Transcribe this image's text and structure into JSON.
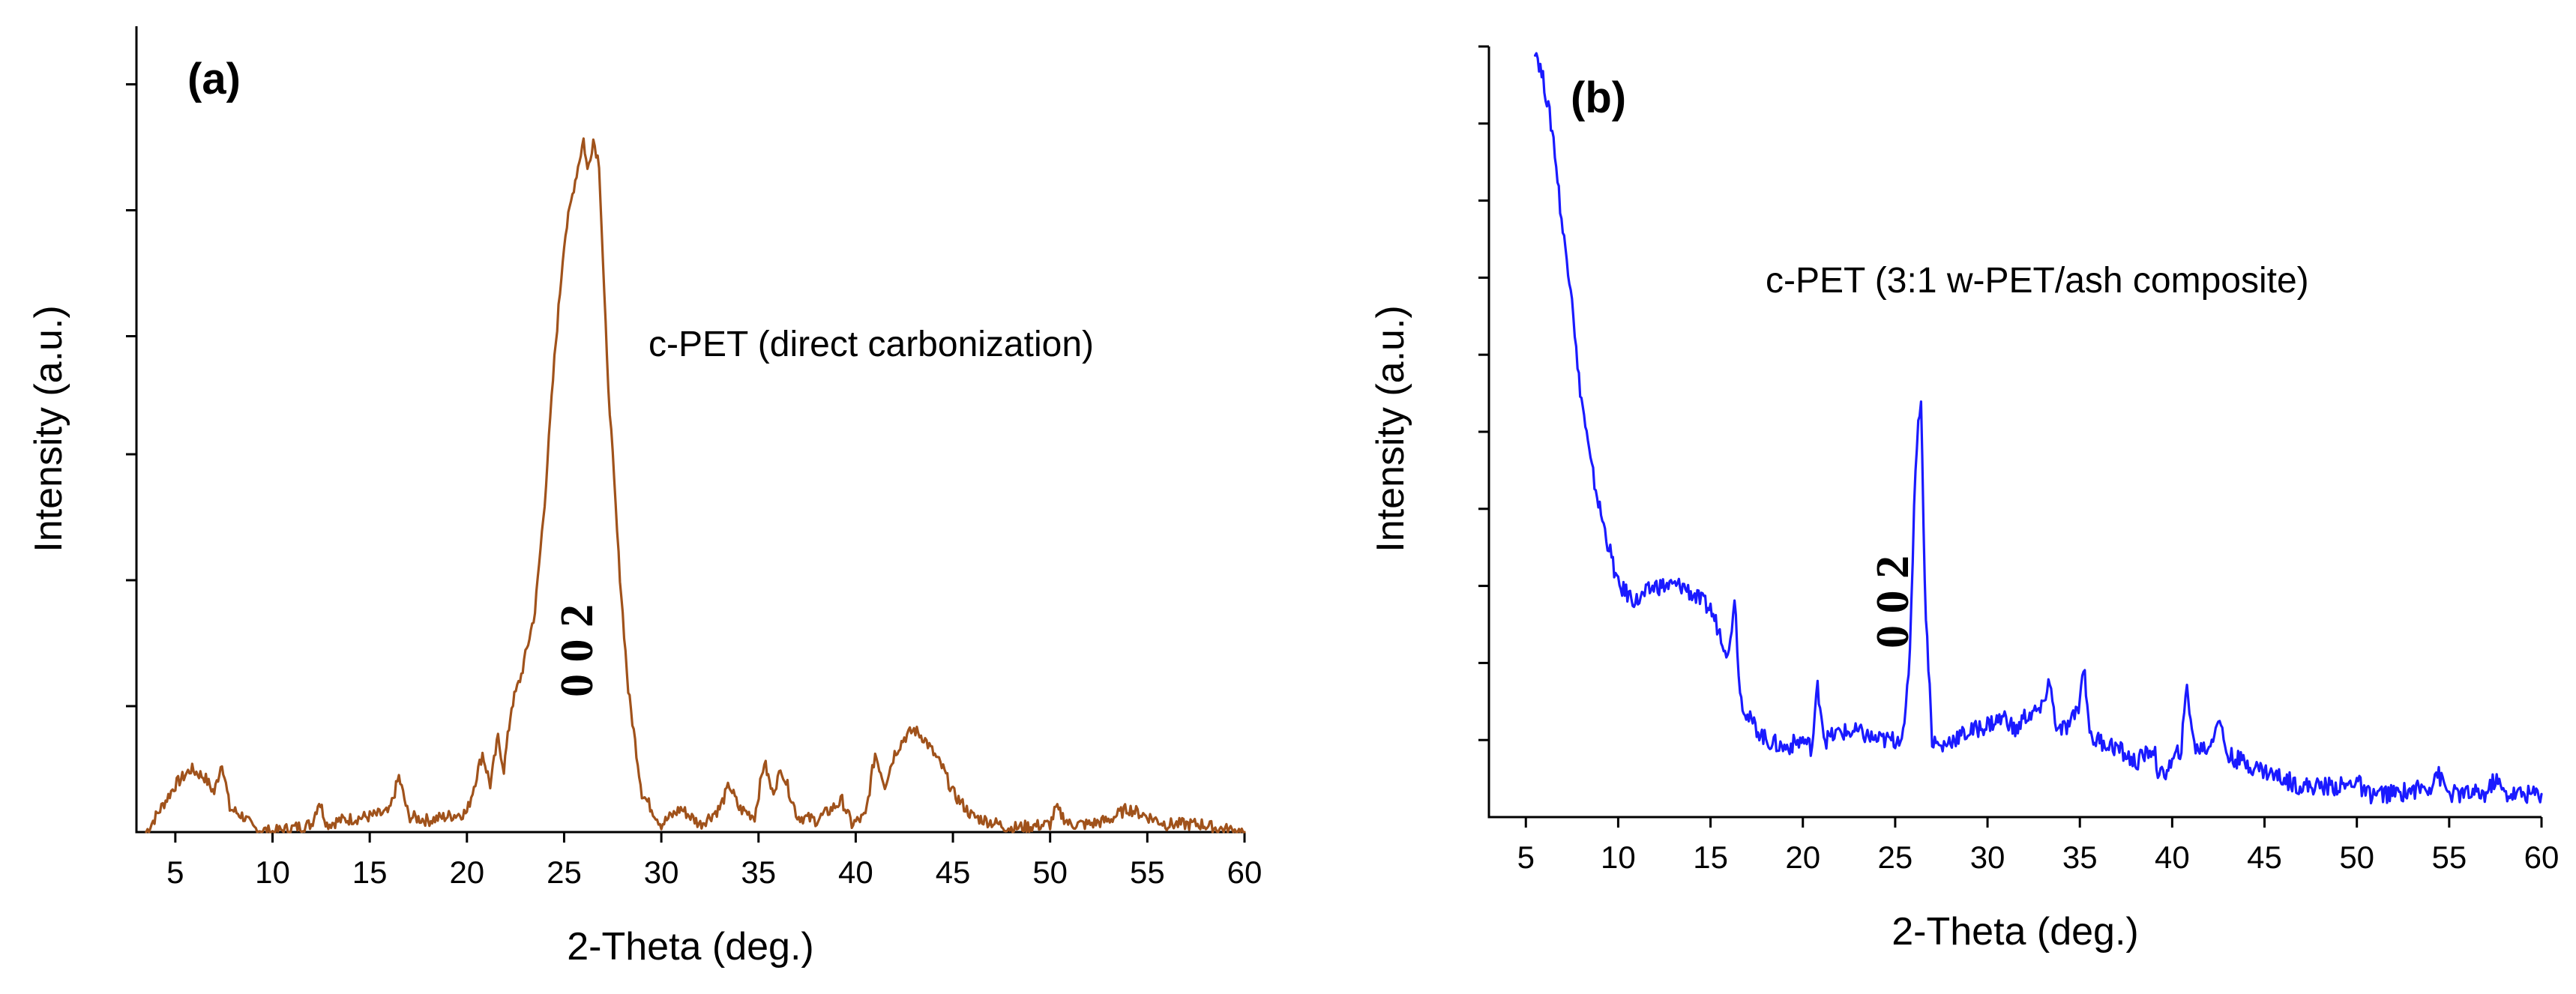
{
  "chart_data": [
    {
      "type": "line",
      "panel_label": "(a)",
      "annotation": "c-PET (direct carbonization)",
      "peak_label": "0 0 2",
      "xlabel": "2-Theta (deg.)",
      "ylabel": "Intensity (a.u.)",
      "xlim": [
        3,
        60
      ],
      "ylim": [
        0,
        100
      ],
      "xticks": [
        5,
        10,
        15,
        20,
        25,
        30,
        35,
        40,
        45,
        50,
        55,
        60
      ],
      "yticks_unlabeled": [
        16,
        32,
        48,
        63,
        79,
        95
      ],
      "color": "#a0521b",
      "series": [
        {
          "name": "c-PET (direct carbonization)",
          "x": [
            3.5,
            4.0,
            5.0,
            5.8,
            6.5,
            7.0,
            7.4,
            7.8,
            8.5,
            9.0,
            10.0,
            11.0,
            12.0,
            12.4,
            12.8,
            13.5,
            15.0,
            16.0,
            16.5,
            17.0,
            18.0,
            20.0,
            20.8,
            21.2,
            21.6,
            21.9,
            22.3,
            22.8,
            23.5,
            24.0,
            24.5,
            25.0,
            25.5,
            26.0,
            26.2,
            26.5,
            26.8,
            27.2,
            27.8,
            28.3,
            29.0,
            30.0,
            31.0,
            32.0,
            33.0,
            33.5,
            34.0,
            34.8,
            35.3,
            35.7,
            36.2,
            37.0,
            38.0,
            39.3,
            39.8,
            40.5,
            41.0,
            41.5,
            42.0,
            42.5,
            43.0,
            43.5,
            44.0,
            44.5,
            45.0,
            46.0,
            48.0,
            50.0,
            50.3,
            51.0,
            52.0,
            53.0,
            54.0,
            55.0,
            56.0,
            57.8,
            58.5,
            60.0
          ],
          "y": [
            0,
            2,
            6,
            8,
            7,
            5,
            9,
            3,
            2,
            0.5,
            0,
            0.5,
            1,
            4,
            1,
            1.5,
            2,
            2.5,
            7,
            2,
            1.5,
            2.5,
            10,
            6,
            12,
            8,
            16,
            20,
            28,
            42,
            60,
            75,
            82,
            88,
            84,
            88,
            85,
            60,
            35,
            18,
            5,
            1,
            3,
            1,
            3,
            6,
            3,
            2,
            9,
            5,
            8,
            2,
            1.5,
            4,
            1,
            2,
            10,
            6,
            10,
            12,
            13,
            12,
            10,
            8,
            5,
            2,
            0.5,
            1,
            3,
            1,
            1,
            1.5,
            3,
            2,
            1,
            1,
            0.5,
            0
          ]
        }
      ]
    },
    {
      "type": "line",
      "panel_label": "(b)",
      "annotation": "c-PET (3:1 w-PET/ash composite)",
      "peak_label": "0 0 2",
      "xlabel": "2-Theta (deg.)",
      "ylabel": "Intensity (a.u.)",
      "xlim": [
        3,
        60
      ],
      "ylim": [
        0,
        100
      ],
      "xticks": [
        5,
        10,
        15,
        20,
        25,
        30,
        35,
        40,
        45,
        50,
        55,
        60
      ],
      "yticks_unlabeled": [
        10,
        20,
        30,
        40,
        50,
        60,
        70,
        80,
        90,
        100
      ],
      "color": "#1a1aff",
      "series": [
        {
          "name": "c-PET (3:1 w-PET/ash composite)",
          "x": [
            5.5,
            6.0,
            6.5,
            7.0,
            7.5,
            7.8,
            8.5,
            9.0,
            9.5,
            10.0,
            11.0,
            12.0,
            13.0,
            13.5,
            14.0,
            15.0,
            15.5,
            16.0,
            16.3,
            16.6,
            17.0,
            18.0,
            19.0,
            20.0,
            20.5,
            20.8,
            21.2,
            22.0,
            23.0,
            24.0,
            25.0,
            25.5,
            25.8,
            26.1,
            26.4,
            26.6,
            27.0,
            27.5,
            28.0,
            29.0,
            30.0,
            31.0,
            31.5,
            32.0,
            33.0,
            33.3,
            33.8,
            34.5,
            35.0,
            35.2,
            35.6,
            36.0,
            37.0,
            37.5,
            38.0,
            39.0,
            39.3,
            40.0,
            40.5,
            40.8,
            41.2,
            42.0,
            42.5,
            43.0,
            44.0,
            45.0,
            47.0,
            49.5,
            50.0,
            50.4,
            52.0,
            54.0,
            54.3,
            55.0,
            57.0,
            57.5,
            58.0,
            60.0
          ],
          "y": [
            100,
            95,
            88,
            76,
            68,
            58,
            46,
            40,
            35,
            30,
            28,
            30,
            30,
            30,
            29,
            27,
            24,
            21,
            29,
            16,
            13,
            10,
            9,
            10,
            9,
            17,
            10,
            11,
            11,
            10,
            10,
            11,
            22,
            46,
            55,
            30,
            10,
            9,
            10,
            11,
            12,
            13,
            11,
            13,
            14,
            18,
            11,
            12,
            15,
            20,
            10,
            10,
            9,
            8,
            7,
            9,
            5,
            7,
            9,
            17,
            9,
            9,
            13,
            8,
            7,
            6,
            4,
            4,
            5,
            3,
            3,
            4,
            6,
            3,
            3,
            5,
            3,
            3
          ]
        }
      ]
    }
  ]
}
